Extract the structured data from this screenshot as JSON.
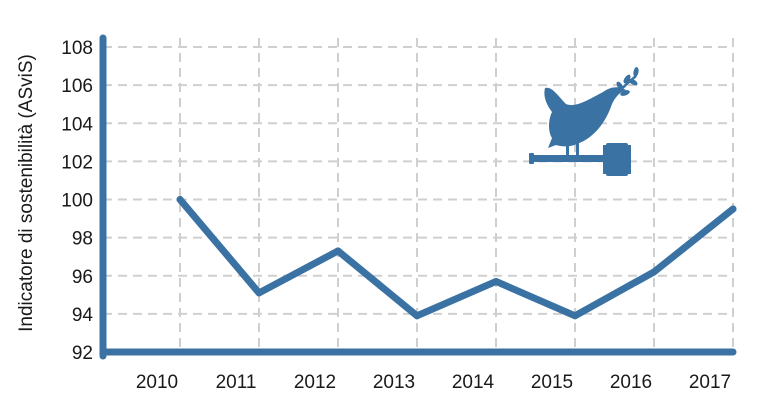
{
  "chart_data": {
    "type": "line",
    "title": "",
    "xlabel": "",
    "ylabel": "Indicatore di sostenibilità (ASviS)",
    "x": [
      "2010",
      "2011",
      "2012",
      "2013",
      "2014",
      "2015",
      "2016",
      "2017"
    ],
    "series": [
      {
        "values": [
          100.0,
          95.1,
          97.3,
          93.9,
          95.7,
          93.9,
          96.2,
          99.5
        ]
      }
    ],
    "yticks": [
      "92",
      "94",
      "96",
      "98",
      "100",
      "102",
      "104",
      "106",
      "108"
    ],
    "ylim": [
      92,
      108
    ],
    "grid": true,
    "legend": "none",
    "colors": {
      "line": "#3a73a3",
      "axis": "#3a73a3",
      "grid": "#cfcfcf",
      "icon": "#3a73a3"
    },
    "icon": "dove-with-olive-branch-and-gavel-icon"
  }
}
